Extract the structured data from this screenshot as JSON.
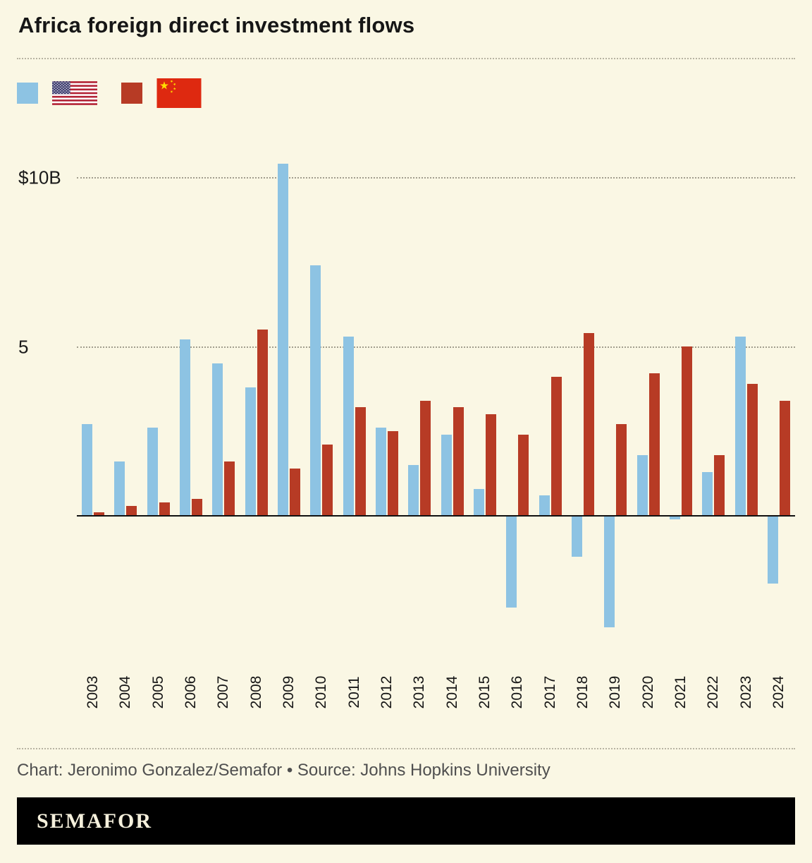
{
  "title": "Africa foreign direct investment flows",
  "legend": [
    {
      "series": "United States",
      "swatch_color": "#8dc3e3",
      "flag": "us-flag"
    },
    {
      "series": "China",
      "swatch_color": "#b73b25",
      "flag": "china-flag"
    }
  ],
  "chart_data": {
    "type": "bar",
    "title": "Africa foreign direct investment flows",
    "categories": [
      "2003",
      "2004",
      "2005",
      "2006",
      "2007",
      "2008",
      "2009",
      "2010",
      "2011",
      "2012",
      "2013",
      "2014",
      "2015",
      "2016",
      "2017",
      "2018",
      "2019",
      "2020",
      "2021",
      "2022",
      "2023",
      "2024"
    ],
    "series": [
      {
        "name": "United States",
        "color": "#8dc3e3",
        "values": [
          2.7,
          1.6,
          2.6,
          5.2,
          4.5,
          3.8,
          10.4,
          7.4,
          5.3,
          2.6,
          1.5,
          2.4,
          0.8,
          -2.7,
          0.6,
          -1.2,
          -3.3,
          1.8,
          -0.1,
          1.3,
          5.3,
          -2.0
        ]
      },
      {
        "name": "China",
        "color": "#b73b25",
        "values": [
          0.1,
          0.3,
          0.4,
          0.5,
          1.6,
          5.5,
          1.4,
          2.1,
          3.2,
          2.5,
          3.4,
          3.2,
          3.0,
          2.4,
          4.1,
          5.4,
          2.7,
          4.2,
          5.0,
          1.8,
          3.9,
          3.4
        ]
      }
    ],
    "unit": "billions USD",
    "yticks": [
      {
        "value": 10,
        "label": "$10B"
      },
      {
        "value": 5,
        "label": "5"
      }
    ],
    "ylim": [
      -3.6,
      11
    ],
    "grid": "horizontal dotted",
    "legend_position": "top-left",
    "baseline": 0
  },
  "credit": "Chart: Jeronimo Gonzalez/Semafor • Source: Johns Hopkins University",
  "footer_logo": "SEMAFOR"
}
